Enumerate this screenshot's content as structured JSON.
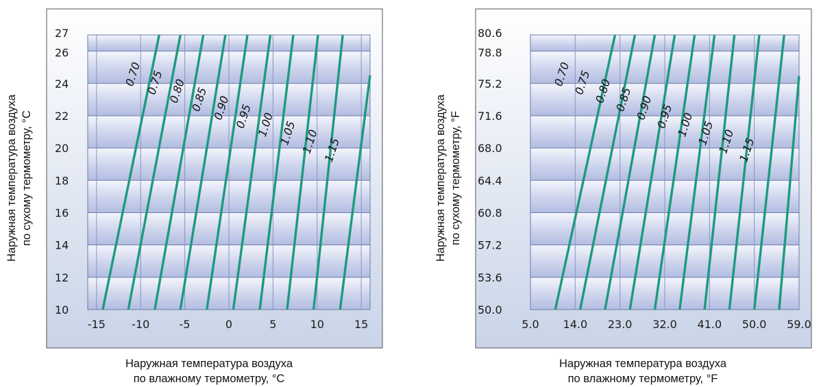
{
  "chart_data": [
    {
      "type": "line",
      "xlabel": [
        "Наружная температура воздуха",
        "по влажному термометру, °C"
      ],
      "ylabel": [
        "Наружная температура воздуха",
        "по сухому термометру, °C"
      ],
      "x_ticks": [
        "-15",
        "-10",
        "-5",
        "0",
        "5",
        "10",
        "15"
      ],
      "y_ticks": [
        "10",
        "12",
        "14",
        "16",
        "18",
        "20",
        "22",
        "24",
        "26",
        "27"
      ],
      "xlim": [
        -16,
        16
      ],
      "ylim": [
        10,
        27
      ],
      "grid": true,
      "series": [
        {
          "name": "0.70",
          "points": [
            [
              -14.3,
              10
            ],
            [
              -7.9,
              27
            ]
          ]
        },
        {
          "name": "0.75",
          "points": [
            [
              -11.4,
              10
            ],
            [
              -5.5,
              27
            ]
          ]
        },
        {
          "name": "0.80",
          "points": [
            [
              -8.4,
              10
            ],
            [
              -2.9,
              27
            ]
          ]
        },
        {
          "name": "0.85",
          "points": [
            [
              -5.5,
              10
            ],
            [
              -0.4,
              27
            ]
          ]
        },
        {
          "name": "0.90",
          "points": [
            [
              -2.5,
              10
            ],
            [
              2.1,
              27
            ]
          ]
        },
        {
          "name": "0.95",
          "points": [
            [
              0.5,
              10
            ],
            [
              4.7,
              27
            ]
          ]
        },
        {
          "name": "1.00",
          "points": [
            [
              3.5,
              10
            ],
            [
              7.3,
              27
            ]
          ]
        },
        {
          "name": "1.05",
          "points": [
            [
              6.6,
              10
            ],
            [
              10.1,
              27
            ]
          ]
        },
        {
          "name": "1.10",
          "points": [
            [
              9.6,
              10
            ],
            [
              12.9,
              27
            ]
          ]
        },
        {
          "name": "1.15",
          "points": [
            [
              12.6,
              10
            ],
            [
              16.0,
              24.5
            ]
          ]
        }
      ]
    },
    {
      "type": "line",
      "xlabel": [
        "Наружная температура воздуха",
        "по влажному термометру, °F"
      ],
      "ylabel": [
        "Наружная температура воздуха",
        "по сухому термометру, °F"
      ],
      "x_ticks": [
        "5.0",
        "14.0",
        "23.0",
        "32.0",
        "41.0",
        "50.0",
        "59.0"
      ],
      "y_ticks": [
        "50.0",
        "53.6",
        "57.2",
        "60.8",
        "64.4",
        "68.0",
        "71.6",
        "75.2",
        "78.8",
        "80.6"
      ],
      "xlim": [
        5,
        59
      ],
      "ylim": [
        50,
        80.6
      ],
      "grid": true,
      "series": [
        {
          "name": "0.70",
          "points": [
            [
              10,
              50
            ],
            [
              22,
              80.6
            ]
          ]
        },
        {
          "name": "0.75",
          "points": [
            [
              15,
              50
            ],
            [
              26,
              80.6
            ]
          ]
        },
        {
          "name": "0.80",
          "points": [
            [
              20,
              50
            ],
            [
              30,
              80.6
            ]
          ]
        },
        {
          "name": "0.85",
          "points": [
            [
              25,
              50
            ],
            [
              34,
              80.6
            ]
          ]
        },
        {
          "name": "0.90",
          "points": [
            [
              30,
              50
            ],
            [
              38,
              80.6
            ]
          ]
        },
        {
          "name": "0.95",
          "points": [
            [
              35,
              50
            ],
            [
              42,
              80.6
            ]
          ]
        },
        {
          "name": "1.00",
          "points": [
            [
              40,
              50
            ],
            [
              46,
              80.6
            ]
          ]
        },
        {
          "name": "1.05",
          "points": [
            [
              45,
              50
            ],
            [
              51,
              80.6
            ]
          ]
        },
        {
          "name": "1.10",
          "points": [
            [
              50,
              50
            ],
            [
              56,
              80.6
            ]
          ]
        },
        {
          "name": "1.15",
          "points": [
            [
              55,
              50
            ],
            [
              59,
              76.0
            ]
          ]
        }
      ]
    }
  ]
}
